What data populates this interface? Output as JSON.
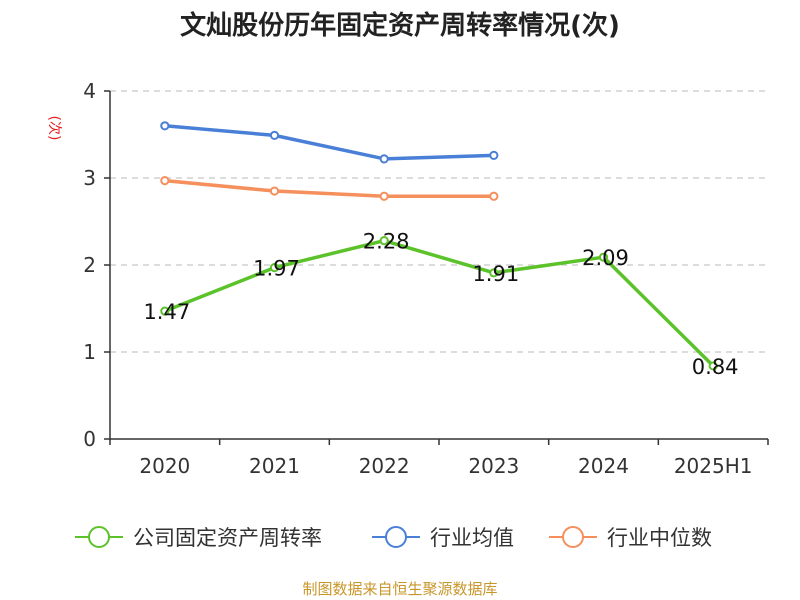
{
  "chart_data": {
    "type": "line",
    "title": "文灿股份历年固定资产周转率情况(次)",
    "ylabel": "(次)",
    "categories": [
      "2020",
      "2021",
      "2022",
      "2023",
      "2024",
      "2025H1"
    ],
    "ylim": [
      0,
      4
    ],
    "yticks": [
      0,
      1,
      2,
      3,
      4
    ],
    "grid": true,
    "legend_position": "bottom",
    "series": [
      {
        "name": "公司固定资产周转率",
        "color": "#5cc22a",
        "values": [
          1.47,
          1.97,
          2.28,
          1.91,
          2.09,
          0.84
        ],
        "labels": [
          "1.47",
          "1.97",
          "2.28",
          "1.91",
          "2.09",
          "0.84"
        ]
      },
      {
        "name": "行业均值",
        "color": "#4a7fd8",
        "values": [
          3.6,
          3.49,
          3.22,
          3.26,
          null,
          null
        ]
      },
      {
        "name": "行业中位数",
        "color": "#f58f5c",
        "values": [
          2.97,
          2.85,
          2.79,
          2.79,
          null,
          null
        ]
      }
    ],
    "source": "制图数据来自恒生聚源数据库",
    "ylabel_color": "#e02020",
    "source_color": "#c8962a"
  }
}
